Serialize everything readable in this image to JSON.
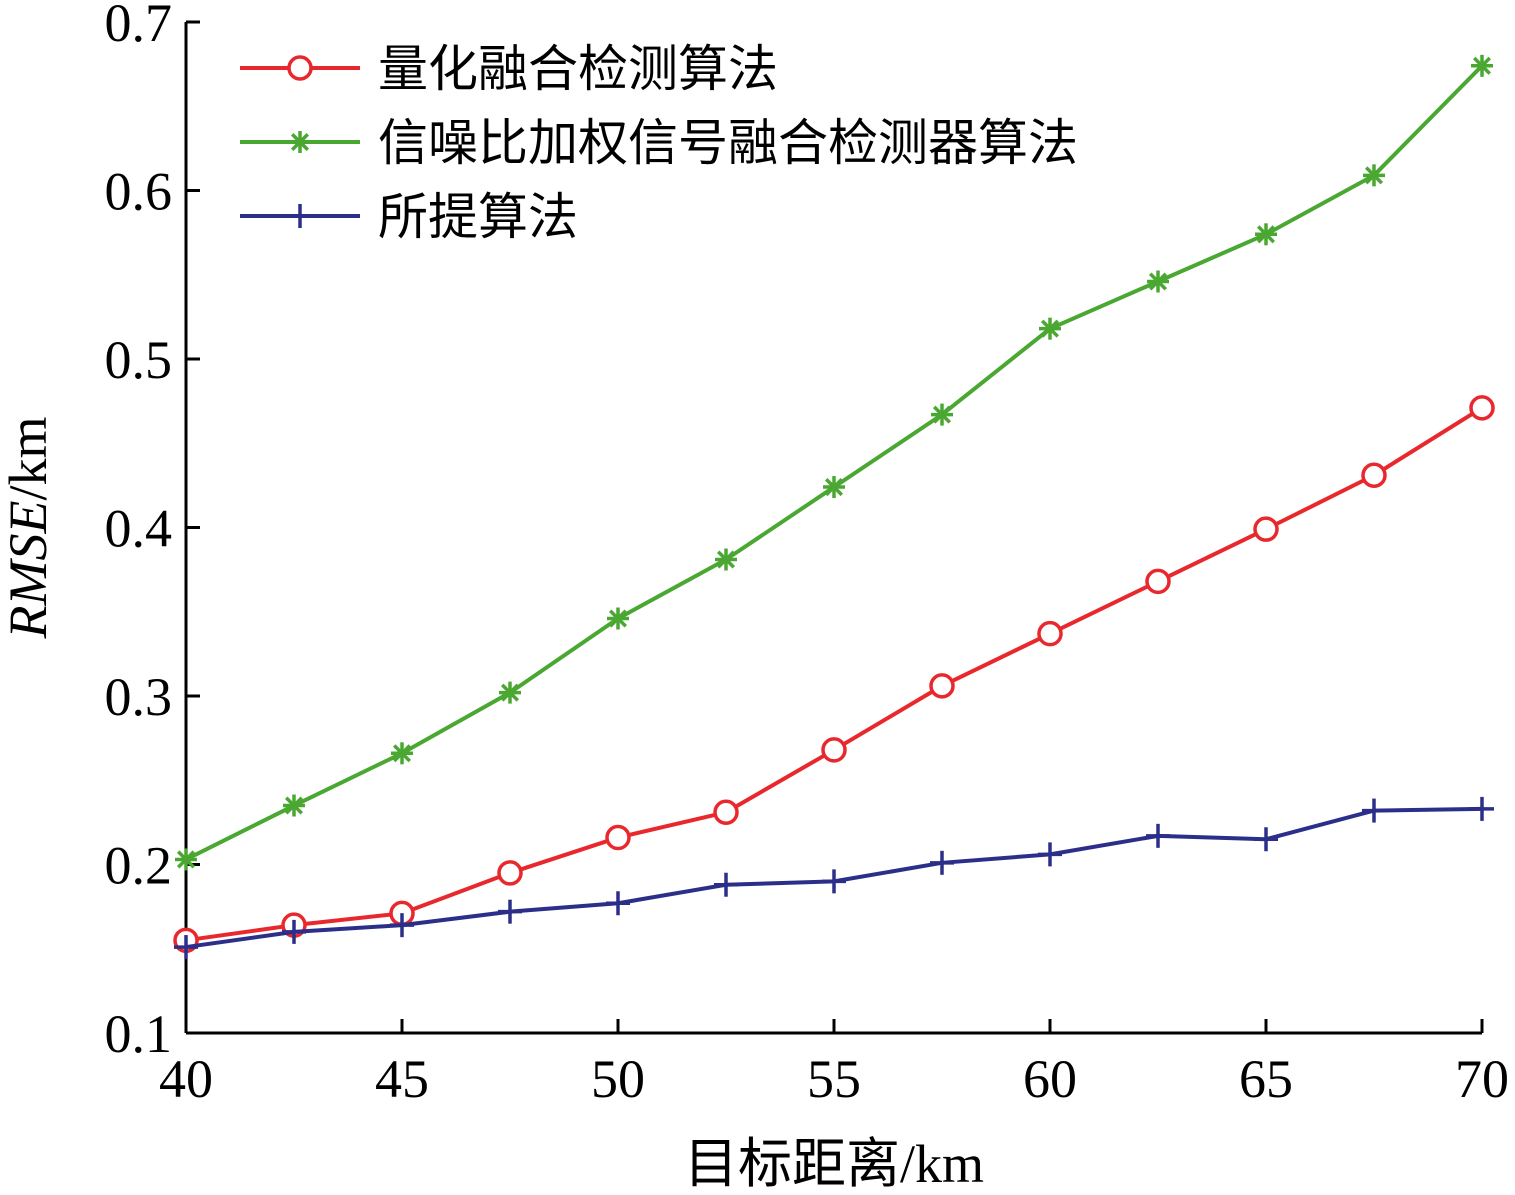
{
  "chart_data": {
    "type": "line",
    "xlabel": "目标距离/km",
    "ylabel_italic": "RMSE",
    "ylabel_unit": "/km",
    "xlim": [
      40,
      70
    ],
    "ylim": [
      0.1,
      0.7
    ],
    "xticks": [
      "40",
      "45",
      "50",
      "55",
      "60",
      "65",
      "70"
    ],
    "yticks": [
      "0.1",
      "0.2",
      "0.3",
      "0.4",
      "0.5",
      "0.6",
      "0.7"
    ],
    "grid": false,
    "legend_position": "top-left",
    "x": [
      40,
      42.5,
      45,
      47.5,
      50,
      52.5,
      55,
      57.5,
      60,
      62.5,
      65,
      67.5,
      70
    ],
    "series": [
      {
        "name": "量化融合检测算法",
        "color": "#e8282d",
        "marker": "circle",
        "values": [
          0.155,
          0.164,
          0.171,
          0.195,
          0.216,
          0.231,
          0.268,
          0.306,
          0.337,
          0.368,
          0.399,
          0.431,
          0.471
        ]
      },
      {
        "name": "信噪比加权信号融合检测器算法",
        "color": "#4aa832",
        "marker": "star",
        "values": [
          0.203,
          0.235,
          0.266,
          0.302,
          0.346,
          0.381,
          0.424,
          0.467,
          0.518,
          0.546,
          0.574,
          0.609,
          0.674
        ]
      },
      {
        "name": "所提算法",
        "color": "#2b2f8a",
        "marker": "plus",
        "values": [
          0.151,
          0.16,
          0.164,
          0.172,
          0.177,
          0.188,
          0.19,
          0.201,
          0.206,
          0.217,
          0.215,
          0.232,
          0.233
        ]
      }
    ]
  }
}
